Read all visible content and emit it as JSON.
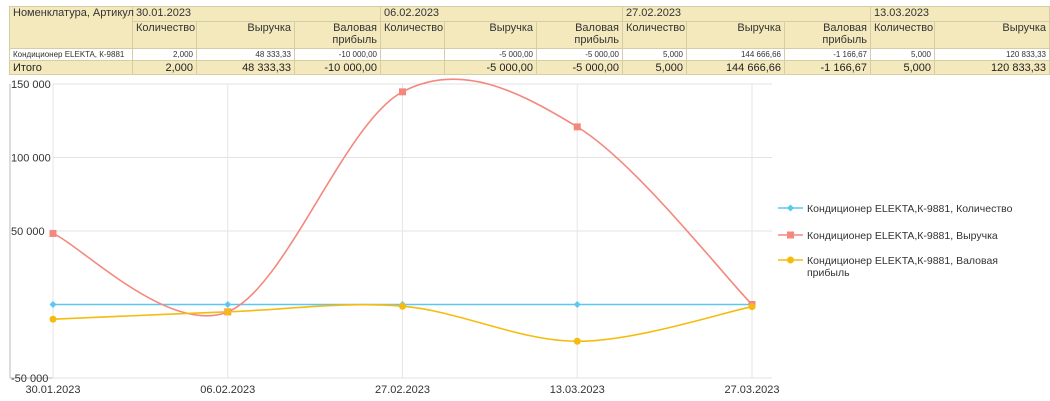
{
  "table": {
    "corner_label": "Номенклатура, Артикул",
    "dates": [
      "30.01.2023",
      "06.02.2023",
      "27.02.2023",
      "13.03.2023"
    ],
    "col_qty": "Количество",
    "col_rev": "Выручка",
    "col_profit": "Валовая прибыль",
    "row_name": "Кондиционер ELEKTA, К-9881",
    "row_values": [
      "2,000",
      "48 333,33",
      "-10 000,00",
      "",
      "-5 000,00",
      "-5 000,00",
      "5,000",
      "144 666,66",
      "-1 166,67",
      "5,000",
      "120 833,33"
    ],
    "total_label": "Итого",
    "total_values": [
      "2,000",
      "48 333,33",
      "-10 000,00",
      "",
      "-5 000,00",
      "-5 000,00",
      "5,000",
      "144 666,66",
      "-1 166,67",
      "5,000",
      "120 833,33"
    ]
  },
  "chart_data": {
    "type": "line",
    "x": [
      "30.01.2023",
      "06.02.2023",
      "27.02.2023",
      "13.03.2023",
      "27.03.2023"
    ],
    "ylim": [
      -50000,
      150000
    ],
    "yticks": [
      -50000,
      50000,
      100000,
      150000
    ],
    "ytick_labels": [
      "-50 000",
      "50 000",
      "100 000",
      "150 000"
    ],
    "grid": true,
    "legend_position": "right",
    "series": [
      {
        "name": "Кондиционер ELEKTA,К-9881, Количество",
        "color": "#5bc8f0",
        "marker": "diamond",
        "smooth": false,
        "values": [
          2,
          0,
          5,
          5,
          0
        ]
      },
      {
        "name": "Кондиционер ELEKTA,К-9881, Выручка",
        "color": "#f4887e",
        "marker": "square",
        "smooth": true,
        "values": [
          48333.33,
          -5000,
          144666.66,
          120833.33,
          0
        ]
      },
      {
        "name": "Кондиционер ELEKTA,К-9881, Валовая прибыль",
        "color": "#f5bc0f",
        "marker": "circle",
        "smooth": true,
        "values": [
          -10000,
          -5000,
          -1166.67,
          -25000,
          -1500
        ]
      }
    ]
  }
}
